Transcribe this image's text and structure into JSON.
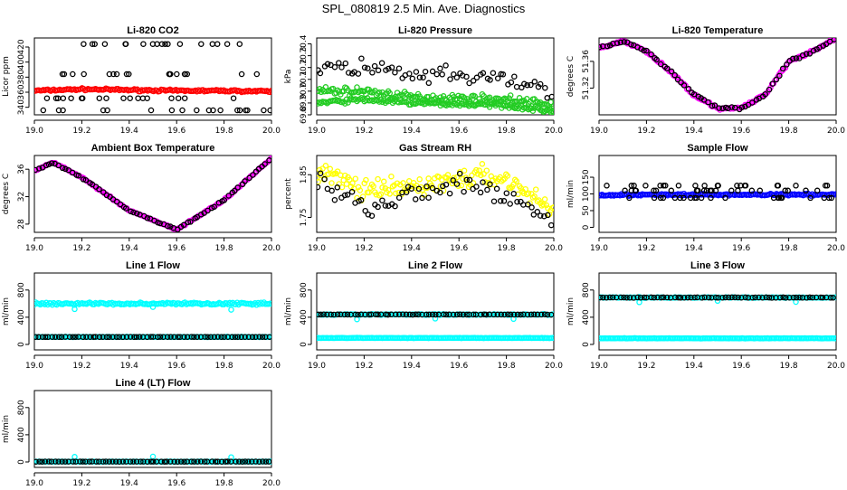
{
  "title": "SPL_080819  2.5 Min. Ave. Diagnostics",
  "colors": {
    "black": "#000000",
    "red": "#ff0000",
    "green": "#22cc22",
    "magenta": "#ff00ff",
    "yellow": "#ffff00",
    "blue": "#0000ff",
    "cyan": "#00ffff"
  },
  "chart_data": [
    {
      "type": "scatter",
      "title": "Li-820 CO2",
      "ylabel": "Licor ppm",
      "xlim": [
        19.0,
        20.0
      ],
      "ylim": [
        330,
        432
      ],
      "xticks": [
        "19.0",
        "19.2",
        "19.4",
        "19.6",
        "19.8",
        "20.0"
      ],
      "yticks": [
        340,
        360,
        380,
        400,
        420
      ],
      "series": [
        {
          "color": "red",
          "kind": "band",
          "x": [
            19.0,
            19.2,
            19.4,
            19.6,
            19.8,
            20.0
          ],
          "y": [
            362,
            364,
            363,
            362,
            362,
            361
          ],
          "spread": 2
        },
        {
          "color": "black",
          "kind": "levels",
          "levels": [
            424,
            384,
            352,
            336
          ],
          "count": 18
        }
      ]
    },
    {
      "type": "scatter",
      "title": "Li-820 Pressure",
      "ylabel": "kPa",
      "xlim": [
        19.0,
        20.0
      ],
      "ylim": [
        69.8,
        70.45
      ],
      "xticks": [
        "19.0",
        "19.2",
        "19.4",
        "19.6",
        "19.8",
        "20.0"
      ],
      "yticks": [
        "69.8",
        "69.9",
        "70.0",
        "70.1",
        "70.2",
        "70.3",
        "70.4"
      ],
      "series": [
        {
          "color": "green",
          "kind": "band",
          "x": [
            19.0,
            19.2,
            19.4,
            19.6,
            19.8,
            20.0
          ],
          "y": [
            70.0,
            70.0,
            69.95,
            69.94,
            69.93,
            69.88
          ],
          "spread": 0.05
        },
        {
          "color": "green",
          "kind": "band",
          "x": [
            19.0,
            19.2,
            19.4,
            19.6,
            19.8,
            20.0
          ],
          "y": [
            69.9,
            69.93,
            69.9,
            69.89,
            69.88,
            69.83
          ],
          "spread": 0.03
        },
        {
          "color": "black",
          "kind": "trend",
          "x": [
            19.0,
            19.2,
            19.4,
            19.6,
            19.8,
            20.0
          ],
          "y": [
            70.2,
            70.2,
            70.12,
            70.12,
            70.1,
            70.0
          ],
          "spread": 0.12
        }
      ]
    },
    {
      "type": "line",
      "title": "Li-820 Temperature",
      "ylabel": "degrees C",
      "xlim": [
        19.0,
        20.0
      ],
      "ylim": [
        51.28,
        51.395
      ],
      "xticks": [
        "19.0",
        "19.2",
        "19.4",
        "19.6",
        "19.8",
        "20.0"
      ],
      "yticks": [
        "51.32",
        "51.36"
      ],
      "series": [
        {
          "color": "magenta",
          "kind": "band",
          "x": [
            19.0,
            19.1,
            19.2,
            19.3,
            19.4,
            19.5,
            19.6,
            19.7,
            19.8,
            19.9,
            20.0
          ],
          "y": [
            51.38,
            51.39,
            51.375,
            51.345,
            51.31,
            51.29,
            51.29,
            51.31,
            51.36,
            51.375,
            51.395
          ],
          "spread": 0.003
        },
        {
          "color": "black",
          "kind": "trend",
          "x": [
            19.0,
            19.1,
            19.2,
            19.3,
            19.4,
            19.5,
            19.6,
            19.7,
            19.8,
            19.9,
            20.0
          ],
          "y": [
            51.38,
            51.39,
            51.375,
            51.345,
            51.31,
            51.29,
            51.29,
            51.31,
            51.36,
            51.375,
            51.395
          ],
          "spread": 0.003
        }
      ]
    },
    {
      "type": "line",
      "title": "Ambient Box Temperature",
      "ylabel": "degrees C",
      "xlim": [
        19.0,
        20.0
      ],
      "ylim": [
        26.8,
        38.0
      ],
      "xticks": [
        "19.0",
        "19.2",
        "19.4",
        "19.6",
        "19.8",
        "20.0"
      ],
      "yticks": [
        28,
        32,
        36
      ],
      "series": [
        {
          "color": "magenta",
          "kind": "band",
          "x": [
            19.0,
            19.08,
            19.2,
            19.4,
            19.6,
            19.8,
            20.0
          ],
          "y": [
            35.8,
            37.0,
            34.8,
            30.0,
            27.2,
            31.5,
            37.6
          ],
          "spread": 0.15
        },
        {
          "color": "black",
          "kind": "trend",
          "x": [
            19.0,
            19.08,
            19.2,
            19.4,
            19.6,
            19.8,
            20.0
          ],
          "y": [
            35.8,
            37.0,
            34.8,
            30.0,
            27.2,
            31.5,
            37.6
          ],
          "spread": 0.15
        }
      ]
    },
    {
      "type": "scatter",
      "title": "Gas Stream RH",
      "ylabel": "percent",
      "xlim": [
        19.0,
        20.0
      ],
      "ylim": [
        1.715,
        1.895
      ],
      "xticks": [
        "19.0",
        "19.2",
        "19.4",
        "19.6",
        "19.8",
        "20.0"
      ],
      "yticks": [
        "1.75",
        "1.85"
      ],
      "series": [
        {
          "color": "yellow",
          "kind": "band",
          "x": [
            19.0,
            19.1,
            19.2,
            19.3,
            19.4,
            19.5,
            19.6,
            19.7,
            19.8,
            19.9,
            20.0
          ],
          "y": [
            1.86,
            1.84,
            1.81,
            1.815,
            1.82,
            1.83,
            1.84,
            1.845,
            1.84,
            1.8,
            1.77
          ],
          "spread": 0.035
        },
        {
          "color": "black",
          "kind": "trend",
          "x": [
            19.0,
            19.1,
            19.2,
            19.3,
            19.4,
            19.5,
            19.6,
            19.7,
            19.8,
            19.9,
            20.0
          ],
          "y": [
            1.84,
            1.8,
            1.78,
            1.79,
            1.8,
            1.81,
            1.82,
            1.82,
            1.8,
            1.77,
            1.74
          ],
          "spread": 0.04
        }
      ]
    },
    {
      "type": "scatter",
      "title": "Sample Flow",
      "ylabel": "ml/min",
      "xlim": [
        19.0,
        20.0
      ],
      "ylim": [
        -15,
        215
      ],
      "xticks": [
        "19.0",
        "19.2",
        "19.4",
        "19.6",
        "19.8",
        "20.0"
      ],
      "yticks": [
        0,
        50,
        100,
        150
      ],
      "series": [
        {
          "color": "blue",
          "kind": "band",
          "x": [
            19.0,
            20.0
          ],
          "y": [
            97,
            98
          ],
          "spread": 4
        },
        {
          "color": "black",
          "kind": "levels",
          "levels": [
            125,
            110,
            88
          ],
          "count": 22
        }
      ]
    },
    {
      "type": "scatter",
      "title": "Line 1 Flow",
      "ylabel": "ml/min",
      "xlim": [
        19.0,
        20.0
      ],
      "ylim": [
        -80,
        1050
      ],
      "xticks": [
        "19.0",
        "19.2",
        "19.4",
        "19.6",
        "19.8",
        "20.0"
      ],
      "yticks": [
        0,
        400,
        800
      ],
      "series": [
        {
          "color": "cyan",
          "kind": "band",
          "x": [
            19.0,
            20.0
          ],
          "y": [
            600,
            600
          ],
          "spread": 25
        },
        {
          "color": "cyan",
          "kind": "points",
          "x": [
            19.17,
            19.5,
            19.83
          ],
          "y": [
            520,
            550,
            510
          ]
        },
        {
          "color": "cyan",
          "kind": "band",
          "x": [
            19.0,
            20.0
          ],
          "y": [
            110,
            110
          ],
          "spread": 5
        },
        {
          "color": "black",
          "kind": "trend",
          "x": [
            19.0,
            20.0
          ],
          "y": [
            110,
            110
          ],
          "spread": 2
        }
      ]
    },
    {
      "type": "scatter",
      "title": "Line 2 Flow",
      "ylabel": "ml/min",
      "xlim": [
        19.0,
        20.0
      ],
      "ylim": [
        -80,
        1050
      ],
      "xticks": [
        "19.0",
        "19.2",
        "19.4",
        "19.6",
        "19.8",
        "20.0"
      ],
      "yticks": [
        0,
        400,
        800
      ],
      "series": [
        {
          "color": "cyan",
          "kind": "band",
          "x": [
            19.0,
            20.0
          ],
          "y": [
            95,
            95
          ],
          "spread": 5
        },
        {
          "color": "cyan",
          "kind": "band",
          "x": [
            19.0,
            20.0
          ],
          "y": [
            440,
            440
          ],
          "spread": 10
        },
        {
          "color": "cyan",
          "kind": "points",
          "x": [
            19.17,
            19.5,
            19.83
          ],
          "y": [
            370,
            380,
            375
          ]
        },
        {
          "color": "black",
          "kind": "trend",
          "x": [
            19.0,
            20.0
          ],
          "y": [
            440,
            440
          ],
          "spread": 4
        }
      ]
    },
    {
      "type": "scatter",
      "title": "Line 3 Flow",
      "ylabel": "ml/min",
      "xlim": [
        19.0,
        20.0
      ],
      "ylim": [
        -80,
        1050
      ],
      "xticks": [
        "19.0",
        "19.2",
        "19.4",
        "19.6",
        "19.8",
        "20.0"
      ],
      "yticks": [
        0,
        400,
        800
      ],
      "series": [
        {
          "color": "cyan",
          "kind": "band",
          "x": [
            19.0,
            20.0
          ],
          "y": [
            90,
            90
          ],
          "spread": 5
        },
        {
          "color": "cyan",
          "kind": "band",
          "x": [
            19.0,
            20.0
          ],
          "y": [
            690,
            690
          ],
          "spread": 10
        },
        {
          "color": "cyan",
          "kind": "points",
          "x": [
            19.17,
            19.5,
            19.83
          ],
          "y": [
            620,
            640,
            625
          ]
        },
        {
          "color": "black",
          "kind": "trend",
          "x": [
            19.0,
            20.0
          ],
          "y": [
            690,
            690
          ],
          "spread": 5
        }
      ]
    },
    {
      "type": "scatter",
      "title": "Line 4 (LT) Flow",
      "ylabel": "ml/min",
      "xlim": [
        19.0,
        20.0
      ],
      "ylim": [
        -80,
        1050
      ],
      "xticks": [
        "19.0",
        "19.2",
        "19.4",
        "19.6",
        "19.8",
        "20.0"
      ],
      "yticks": [
        0,
        400,
        800
      ],
      "series": [
        {
          "color": "cyan",
          "kind": "band",
          "x": [
            19.0,
            20.0
          ],
          "y": [
            5,
            5
          ],
          "spread": 3
        },
        {
          "color": "cyan",
          "kind": "points",
          "x": [
            19.17,
            19.5,
            19.83
          ],
          "y": [
            75,
            80,
            70
          ]
        },
        {
          "color": "black",
          "kind": "trend",
          "x": [
            19.0,
            20.0
          ],
          "y": [
            5,
            5
          ],
          "spread": 2
        }
      ]
    }
  ]
}
